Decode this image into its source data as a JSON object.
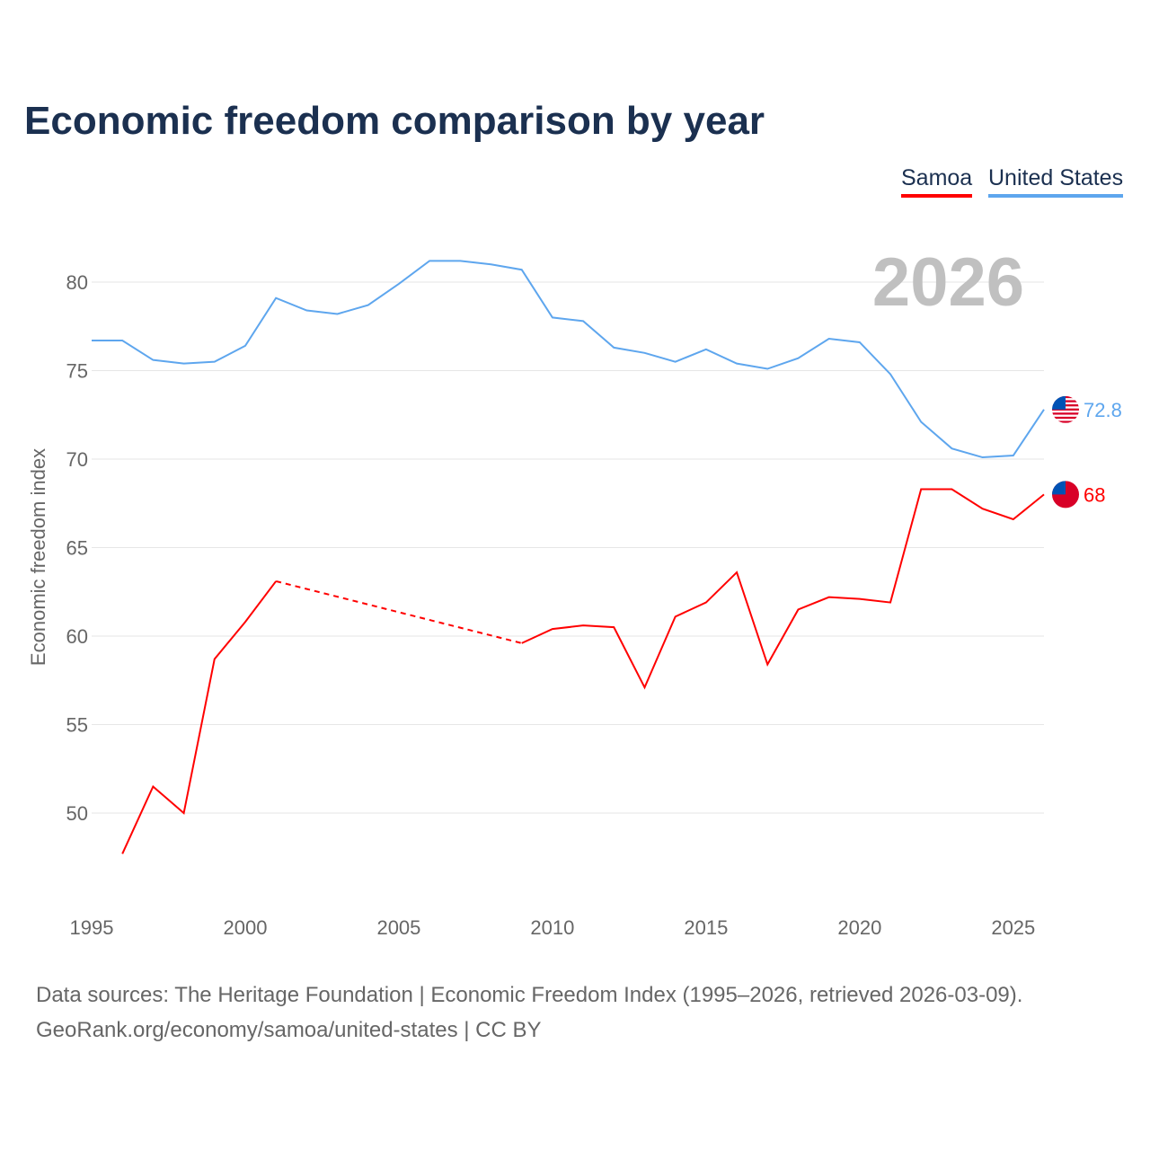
{
  "title": "Economic freedom comparison by year",
  "footer": {
    "line1": "Data sources: The Heritage Foundation | Economic Freedom Index (1995–2026, retrieved 2026-03-09).",
    "line2": "GeoRank.org/economy/samoa/united-states | CC BY"
  },
  "chart_data": {
    "type": "line",
    "title": "Economic freedom comparison by year",
    "ylabel": "Economic freedom index",
    "xlabel": "",
    "year_watermark": "2026",
    "xlim": [
      1995,
      2026
    ],
    "ylim": [
      44.8,
      84
    ],
    "xticks": [
      "1995",
      "2000",
      "2005",
      "2010",
      "2015",
      "2020",
      "2025"
    ],
    "yticks": [
      "50",
      "55",
      "60",
      "65",
      "70",
      "75",
      "80"
    ],
    "grid": true,
    "legend_position": "top-right",
    "x": [
      1995,
      1996,
      1997,
      1998,
      1999,
      2000,
      2001,
      2002,
      2003,
      2004,
      2005,
      2006,
      2007,
      2008,
      2009,
      2010,
      2011,
      2012,
      2013,
      2014,
      2015,
      2016,
      2017,
      2018,
      2019,
      2020,
      2021,
      2022,
      2023,
      2024,
      2025,
      2026
    ],
    "series": [
      {
        "name": "Samoa",
        "color": "#ff0000",
        "end_label": "68",
        "flag": "samoa-flag",
        "values": [
          null,
          47.7,
          51.5,
          50.0,
          58.7,
          60.8,
          63.1,
          null,
          null,
          null,
          null,
          null,
          null,
          null,
          59.6,
          60.4,
          60.6,
          60.5,
          57.1,
          61.1,
          61.9,
          63.6,
          58.4,
          61.5,
          62.2,
          62.1,
          61.9,
          68.3,
          68.3,
          67.2,
          66.6,
          68.0
        ]
      },
      {
        "name": "United States",
        "color": "#5ea6ee",
        "end_label": "72.8",
        "flag": "us-flag",
        "values": [
          76.7,
          76.7,
          75.6,
          75.4,
          75.5,
          76.4,
          79.1,
          78.4,
          78.2,
          78.7,
          79.9,
          81.2,
          81.2,
          81.0,
          80.7,
          78.0,
          77.8,
          76.3,
          76.0,
          75.5,
          76.2,
          75.4,
          75.1,
          75.7,
          76.8,
          76.6,
          74.8,
          72.1,
          70.6,
          70.1,
          70.2,
          72.8
        ]
      }
    ]
  }
}
